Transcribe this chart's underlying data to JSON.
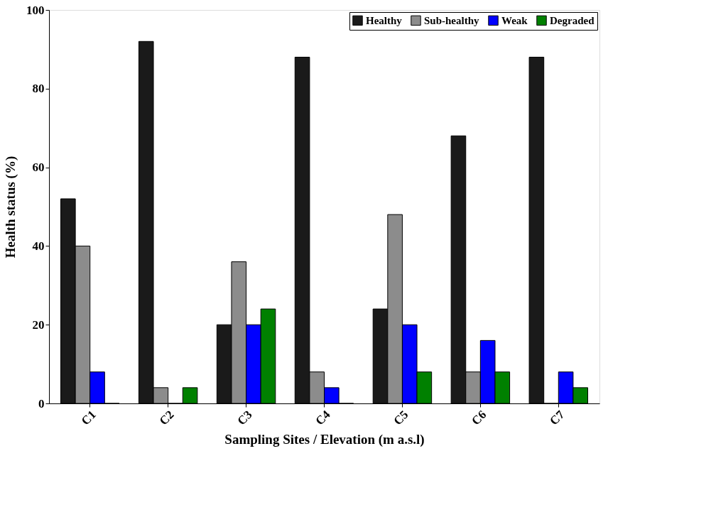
{
  "chart_data": {
    "type": "bar",
    "xlabel": "Sampling Sites / Elevation (m a.s.l)",
    "ylabel": "Health status (%)",
    "categories": [
      "C1",
      "C2",
      "C3",
      "C4",
      "C5",
      "C6",
      "C7"
    ],
    "series": [
      {
        "name": "Healthy",
        "color": "#1a1a1a",
        "values": [
          52,
          92,
          20,
          88,
          24,
          68,
          88
        ]
      },
      {
        "name": "Sub-healthy",
        "color": "#8c8c8c",
        "values": [
          40,
          4,
          36,
          8,
          48,
          8,
          0
        ]
      },
      {
        "name": "Weak",
        "color": "#0000ff",
        "values": [
          8,
          0,
          20,
          4,
          20,
          16,
          8
        ]
      },
      {
        "name": "Degraded",
        "color": "#008000",
        "values": [
          0,
          4,
          24,
          0,
          8,
          8,
          4
        ]
      }
    ],
    "ylim": [
      0,
      100
    ],
    "yticks": [
      0,
      20,
      40,
      60,
      80,
      100
    ],
    "grid": false,
    "legend": "top right"
  }
}
